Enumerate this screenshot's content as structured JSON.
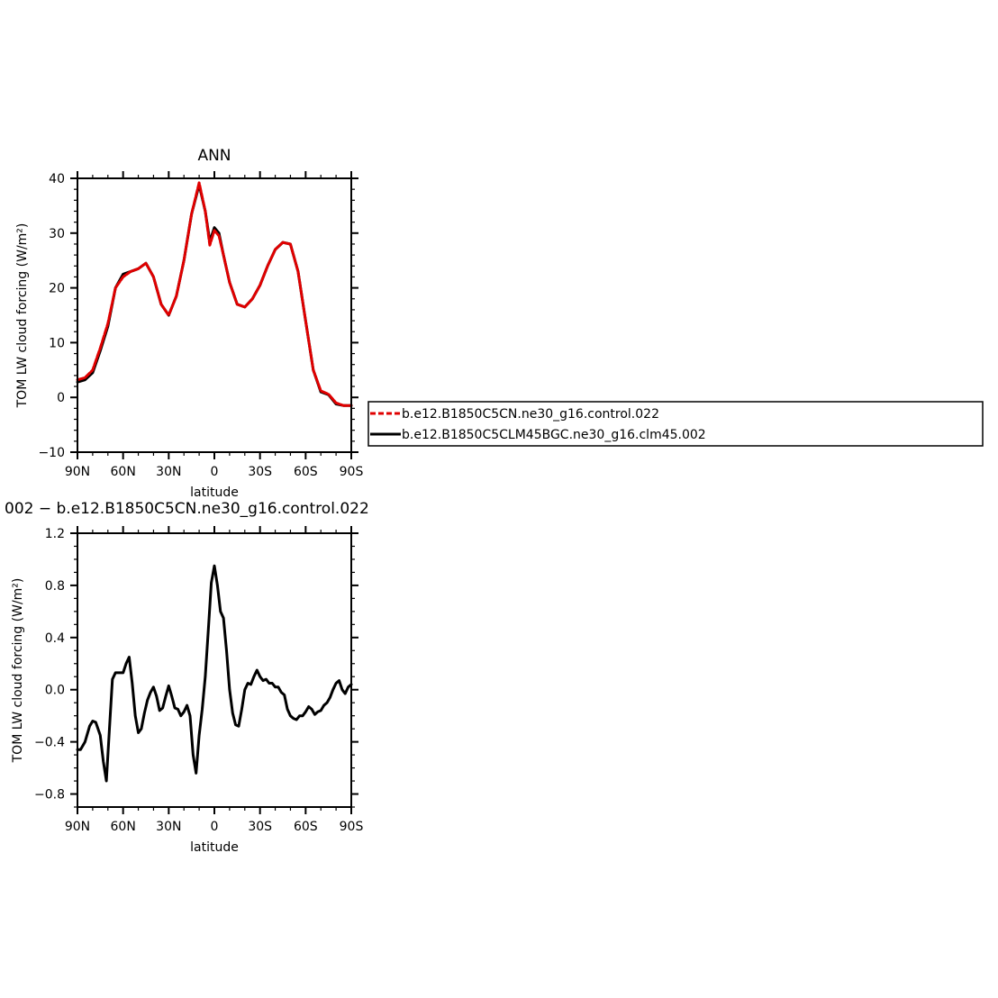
{
  "chart_data": [
    {
      "type": "line",
      "title": "ANN",
      "xlabel": "latitude",
      "ylabel": "TOM LW cloud forcing (W/m²)",
      "xlim": [
        90,
        -90
      ],
      "ylim": [
        -10,
        40
      ],
      "yticks": [
        "40",
        "30",
        "20",
        "10",
        "0",
        "−10"
      ],
      "xticks": [
        {
          "value": 90,
          "label": "90N"
        },
        {
          "value": 60,
          "label": "60N"
        },
        {
          "value": 30,
          "label": "30N"
        },
        {
          "value": 0,
          "label": "0"
        },
        {
          "value": -30,
          "label": "30S"
        },
        {
          "value": -60,
          "label": "60S"
        },
        {
          "value": -90,
          "label": "90S"
        }
      ],
      "legend": "right",
      "series": [
        {
          "name": "b.e12.B1850C5CLM45BGC.ne30_g16.clm45.002",
          "color": "#000000",
          "dash": "solid",
          "x": [
            90,
            85,
            80,
            75,
            70,
            65,
            60,
            55,
            50,
            45,
            40,
            35,
            30,
            25,
            20,
            15,
            10,
            6,
            3,
            0,
            -3,
            -6,
            -10,
            -15,
            -20,
            -25,
            -30,
            -35,
            -40,
            -45,
            -50,
            -55,
            -60,
            -65,
            -70,
            -75,
            -80,
            -85,
            -90
          ],
          "y": [
            2.8,
            3.2,
            4.5,
            8.5,
            13,
            20,
            22.5,
            23,
            23.5,
            24.5,
            22,
            17,
            15,
            18.5,
            25,
            33.5,
            38.8,
            34,
            28.5,
            31,
            30,
            26,
            21,
            17,
            16.5,
            18,
            20.5,
            24,
            27,
            28.3,
            28,
            23,
            14,
            5,
            1,
            0.5,
            -1.2,
            -1.5,
            -1.5
          ]
        },
        {
          "name": "b.e12.B1850C5CN.ne30_g16.control.022",
          "color": "#e00000",
          "dash": "dashed",
          "x": [
            90,
            85,
            80,
            75,
            70,
            65,
            60,
            55,
            50,
            45,
            40,
            35,
            30,
            25,
            20,
            15,
            10,
            6,
            3,
            0,
            -3,
            -6,
            -10,
            -15,
            -20,
            -25,
            -30,
            -35,
            -40,
            -45,
            -50,
            -55,
            -60,
            -65,
            -70,
            -75,
            -80,
            -85,
            -90
          ],
          "y": [
            3.2,
            3.6,
            5,
            9,
            13.5,
            20,
            22,
            23,
            23.5,
            24.5,
            22,
            17,
            15,
            18.5,
            25,
            33.5,
            39.2,
            34,
            27.8,
            30.5,
            29.5,
            26,
            21,
            17,
            16.5,
            18,
            20.5,
            24,
            27,
            28.3,
            28,
            23,
            14,
            5,
            1.2,
            0.6,
            -1,
            -1.5,
            -1.5
          ]
        }
      ]
    },
    {
      "type": "line",
      "title": "002 − b.e12.B1850C5CN.ne30_g16.control.022",
      "xlabel": "latitude",
      "ylabel": "TOM LW cloud forcing (W/m²)",
      "xlim": [
        90,
        -90
      ],
      "ylim": [
        -0.9,
        1.2
      ],
      "yticks": [
        "1.2",
        "0.8",
        "0.4",
        "0.0",
        "−0.4",
        "−0.8"
      ],
      "xticks": [
        {
          "value": 90,
          "label": "90N"
        },
        {
          "value": 60,
          "label": "60N"
        },
        {
          "value": 30,
          "label": "30N"
        },
        {
          "value": 0,
          "label": "0"
        },
        {
          "value": -30,
          "label": "30S"
        },
        {
          "value": -60,
          "label": "60S"
        },
        {
          "value": -90,
          "label": "90S"
        }
      ],
      "series": [
        {
          "color": "#000000",
          "dash": "solid",
          "x": [
            90,
            88,
            85,
            82,
            80,
            78,
            75,
            73,
            71,
            69,
            67,
            65,
            62,
            60,
            58,
            56,
            54,
            52,
            50,
            48,
            46,
            44,
            42,
            40,
            38,
            36,
            34,
            32,
            30,
            28,
            26,
            24,
            22,
            20,
            18,
            16,
            14,
            12,
            10,
            8,
            6,
            4,
            2,
            0,
            -2,
            -4,
            -6,
            -8,
            -10,
            -12,
            -14,
            -16,
            -18,
            -20,
            -22,
            -24,
            -26,
            -28,
            -30,
            -32,
            -34,
            -36,
            -38,
            -40,
            -42,
            -44,
            -46,
            -48,
            -50,
            -52,
            -54,
            -56,
            -58,
            -60,
            -62,
            -64,
            -66,
            -68,
            -70,
            -72,
            -74,
            -76,
            -78,
            -80,
            -82,
            -84,
            -86,
            -88,
            -90
          ],
          "y": [
            -0.46,
            -0.46,
            -0.4,
            -0.28,
            -0.24,
            -0.25,
            -0.35,
            -0.55,
            -0.7,
            -0.3,
            0.08,
            0.13,
            0.13,
            0.13,
            0.2,
            0.25,
            0.05,
            -0.2,
            -0.33,
            -0.3,
            -0.18,
            -0.08,
            -0.02,
            0.02,
            -0.05,
            -0.16,
            -0.14,
            -0.05,
            0.03,
            -0.05,
            -0.14,
            -0.15,
            -0.2,
            -0.17,
            -0.12,
            -0.2,
            -0.5,
            -0.64,
            -0.35,
            -0.15,
            0.1,
            0.45,
            0.82,
            0.95,
            0.8,
            0.6,
            0.55,
            0.3,
            0.0,
            -0.18,
            -0.27,
            -0.28,
            -0.15,
            0.0,
            0.05,
            0.04,
            0.1,
            0.15,
            0.1,
            0.07,
            0.08,
            0.05,
            0.05,
            0.02,
            0.02,
            -0.02,
            -0.04,
            -0.15,
            -0.2,
            -0.22,
            -0.23,
            -0.2,
            -0.2,
            -0.17,
            -0.13,
            -0.15,
            -0.19,
            -0.17,
            -0.16,
            -0.12,
            -0.1,
            -0.06,
            0.0,
            0.05,
            0.07,
            0.0,
            -0.03,
            0.02,
            0.04
          ]
        }
      ]
    }
  ],
  "legend_box": {
    "entries": [
      {
        "label": "b.e12.B1850C5CN.ne30_g16.control.022",
        "color": "#e00000",
        "dash": "dashed"
      },
      {
        "label": "b.e12.B1850C5CLM45BGC.ne30_g16.clm45.002",
        "color": "#000000",
        "dash": "solid"
      }
    ]
  }
}
